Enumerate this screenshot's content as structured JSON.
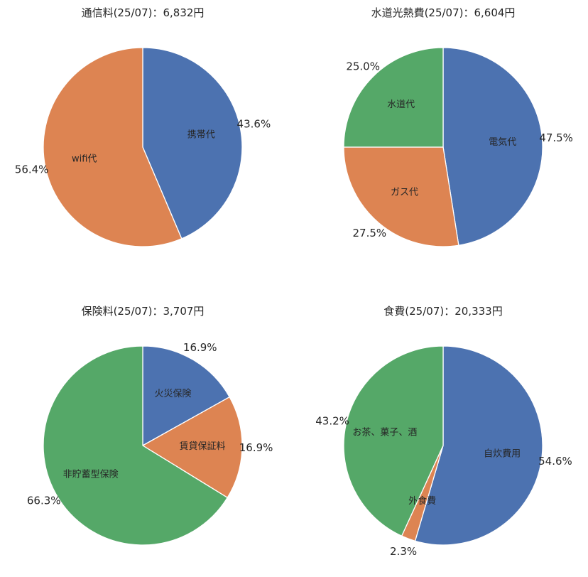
{
  "colors": {
    "blue": "#4C72B0",
    "orange": "#DD8452",
    "green": "#55A868"
  },
  "chart_data": [
    {
      "type": "pie",
      "title": "通信料(25/07)：6,832円",
      "slices": [
        {
          "label": "携帯代",
          "percent_label": "43.6%",
          "value": 43.6,
          "color": "#4C72B0"
        },
        {
          "label": "wifi代",
          "percent_label": "56.4%",
          "value": 56.4,
          "color": "#DD8452"
        }
      ]
    },
    {
      "type": "pie",
      "title": "水道光熱費(25/07)：6,604円",
      "slices": [
        {
          "label": "電気代",
          "percent_label": "47.5%",
          "value": 47.5,
          "color": "#4C72B0"
        },
        {
          "label": "ガス代",
          "percent_label": "27.5%",
          "value": 27.5,
          "color": "#DD8452"
        },
        {
          "label": "水道代",
          "percent_label": "25.0%",
          "value": 25.0,
          "color": "#55A868"
        }
      ]
    },
    {
      "type": "pie",
      "title": "保険料(25/07)：3,707円",
      "slices": [
        {
          "label": "火災保険",
          "percent_label": "16.9%",
          "value": 16.9,
          "color": "#4C72B0"
        },
        {
          "label": "賃貸保証料",
          "percent_label": "16.9%",
          "value": 16.9,
          "color": "#DD8452"
        },
        {
          "label": "非貯蓄型保険",
          "percent_label": "66.3%",
          "value": 66.3,
          "color": "#55A868"
        }
      ]
    },
    {
      "type": "pie",
      "title": "食費(25/07)：20,333円",
      "slices": [
        {
          "label": "自炊費用",
          "percent_label": "54.6%",
          "value": 54.6,
          "color": "#4C72B0"
        },
        {
          "label": "外食費",
          "percent_label": "2.3%",
          "value": 2.3,
          "color": "#DD8452"
        },
        {
          "label": "お茶、菓子、酒",
          "percent_label": "43.2%",
          "value": 43.2,
          "color": "#55A868"
        }
      ]
    }
  ]
}
